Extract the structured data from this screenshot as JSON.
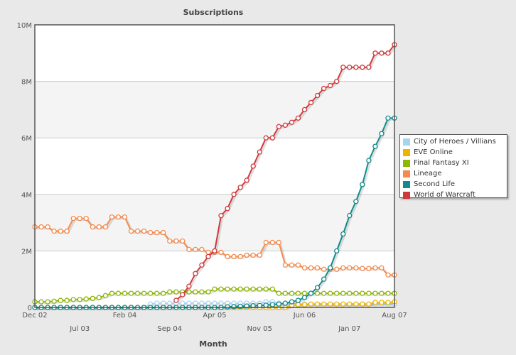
{
  "chart_data": {
    "type": "line",
    "title": "Subscriptions",
    "xlabel": "Month",
    "ylabel": "",
    "ylim": [
      0,
      10
    ],
    "y_unit": "M",
    "yticks": [
      "0",
      "2M",
      "4M",
      "6M",
      "8M",
      "10M"
    ],
    "xticks_row1": [
      {
        "label": "Dec 02",
        "index": 0
      },
      {
        "label": "Feb 04",
        "index": 14
      },
      {
        "label": "Apr 05",
        "index": 28
      },
      {
        "label": "Jun 06",
        "index": 42
      },
      {
        "label": "Aug 07",
        "index": 56
      }
    ],
    "xticks_row2": [
      {
        "label": "Jul 03",
        "index": 7
      },
      {
        "label": "Sep 04",
        "index": 21
      },
      {
        "label": "Nov 05",
        "index": 35
      },
      {
        "label": "Jan 07",
        "index": 49
      }
    ],
    "x_count": 57,
    "legend_position": "right",
    "series": [
      {
        "name": "City of Heroes / Villians",
        "color": "#a8d4f0",
        "values": [
          0,
          0,
          0,
          0,
          0,
          0,
          0,
          0,
          0,
          0,
          0,
          0,
          0,
          0,
          0,
          0,
          0,
          0,
          0.12,
          0.15,
          0.15,
          0.15,
          0.15,
          0.15,
          0.15,
          0.15,
          0.15,
          0.15,
          0.15,
          0.15,
          0.15,
          0.15,
          0.15,
          0.15,
          0.15,
          0.15,
          0.2,
          0.2,
          0.15,
          0.15,
          0.15,
          0.12,
          0.12,
          0.12,
          0.12,
          0.12,
          0.12,
          0.12,
          0.12,
          0.12,
          0.12,
          0.12,
          0.12,
          0.12,
          0.12,
          0.12,
          0.12
        ]
      },
      {
        "name": "EVE Online",
        "color": "#f0b400",
        "values": [
          0,
          0,
          0,
          0,
          0,
          0,
          0,
          0,
          0,
          0,
          0,
          0,
          0,
          0,
          0,
          0,
          0,
          0,
          0,
          0,
          0,
          0,
          0,
          0,
          0,
          0,
          0,
          0,
          0,
          0,
          0,
          0,
          0,
          0,
          0,
          0,
          0,
          0,
          0,
          0,
          0.08,
          0.1,
          0.1,
          0.12,
          0.12,
          0.12,
          0.12,
          0.12,
          0.12,
          0.12,
          0.12,
          0.12,
          0.12,
          0.18,
          0.18,
          0.18,
          0.2
        ]
      },
      {
        "name": "Final Fantasy XI",
        "color": "#8cb800",
        "values": [
          0.2,
          0.2,
          0.2,
          0.22,
          0.25,
          0.25,
          0.28,
          0.28,
          0.3,
          0.32,
          0.35,
          0.42,
          0.5,
          0.5,
          0.5,
          0.5,
          0.5,
          0.5,
          0.5,
          0.5,
          0.5,
          0.55,
          0.55,
          0.55,
          0.55,
          0.55,
          0.55,
          0.55,
          0.65,
          0.65,
          0.65,
          0.65,
          0.65,
          0.65,
          0.65,
          0.65,
          0.65,
          0.65,
          0.5,
          0.5,
          0.5,
          0.5,
          0.5,
          0.5,
          0.5,
          0.5,
          0.5,
          0.5,
          0.5,
          0.5,
          0.5,
          0.5,
          0.5,
          0.5,
          0.5,
          0.5,
          0.5
        ]
      },
      {
        "name": "Lineage",
        "color": "#f58a4a",
        "values": [
          2.85,
          2.85,
          2.85,
          2.7,
          2.7,
          2.7,
          3.15,
          3.15,
          3.15,
          2.85,
          2.85,
          2.85,
          3.2,
          3.2,
          3.2,
          2.7,
          2.7,
          2.7,
          2.65,
          2.65,
          2.65,
          2.35,
          2.35,
          2.35,
          2.05,
          2.05,
          2.05,
          1.95,
          1.95,
          1.95,
          1.8,
          1.8,
          1.8,
          1.85,
          1.85,
          1.85,
          2.3,
          2.3,
          2.3,
          1.5,
          1.5,
          1.5,
          1.4,
          1.4,
          1.4,
          1.35,
          1.35,
          1.35,
          1.4,
          1.4,
          1.4,
          1.38,
          1.38,
          1.4,
          1.4,
          1.15,
          1.15
        ]
      },
      {
        "name": "Second Life",
        "color": "#0e8c8c",
        "values": [
          0,
          0,
          0,
          0,
          0,
          0,
          0,
          0,
          0,
          0,
          0,
          0,
          0,
          0,
          0,
          0,
          0,
          0,
          0,
          0,
          0,
          0,
          0,
          0,
          0,
          0,
          0,
          0,
          0,
          0,
          0.02,
          0.03,
          0.04,
          0.05,
          0.06,
          0.07,
          0.08,
          0.1,
          0.12,
          0.15,
          0.2,
          0.25,
          0.35,
          0.5,
          0.7,
          1.0,
          1.4,
          2.0,
          2.6,
          3.25,
          3.75,
          4.35,
          5.2,
          5.7,
          6.15,
          6.7,
          6.7
        ]
      },
      {
        "name": "World of Warcraft",
        "color": "#d0383c",
        "values": [
          null,
          null,
          null,
          null,
          null,
          null,
          null,
          null,
          null,
          null,
          null,
          null,
          null,
          null,
          null,
          null,
          null,
          null,
          null,
          null,
          null,
          null,
          0.25,
          0.45,
          0.75,
          1.2,
          1.5,
          1.8,
          2.0,
          3.25,
          3.5,
          4.0,
          4.25,
          4.5,
          5.0,
          5.5,
          6.0,
          6.0,
          6.4,
          6.45,
          6.55,
          6.7,
          7.0,
          7.25,
          7.5,
          7.75,
          7.85,
          8.0,
          8.5,
          8.5,
          8.5,
          8.5,
          8.5,
          9.0,
          9.0,
          9.0,
          9.3
        ]
      }
    ]
  }
}
